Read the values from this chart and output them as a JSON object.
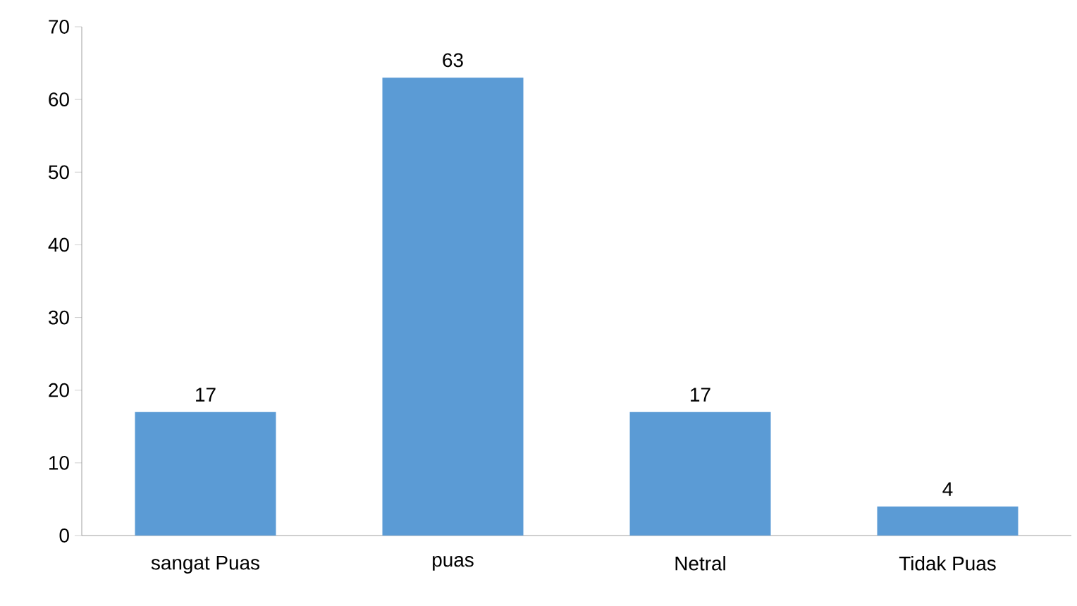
{
  "chart_data": {
    "type": "bar",
    "categories": [
      "sangat Puas",
      "puas",
      "Netral",
      "Tidak Puas"
    ],
    "values": [
      17,
      63,
      17,
      4
    ],
    "color": "#5b9bd5",
    "ylim": [
      0,
      70
    ],
    "yticks": [
      0,
      10,
      20,
      30,
      40,
      50,
      60,
      70
    ],
    "grid": false,
    "data_labels": true
  }
}
